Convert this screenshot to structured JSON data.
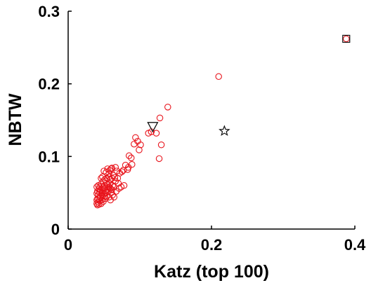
{
  "chart_data": {
    "type": "scatter",
    "title": "",
    "xlabel": "Katz (top 100)",
    "ylabel": "NBTW",
    "xlim": [
      0,
      0.4
    ],
    "ylim": [
      0,
      0.3
    ],
    "xticks": [
      0,
      0.2,
      0.4
    ],
    "xtick_labels": [
      "0",
      "0.2",
      "0.4"
    ],
    "yticks": [
      0,
      0.1,
      0.2,
      0.3
    ],
    "ytick_labels": [
      "0",
      "0.1",
      "0.2",
      "0.3"
    ],
    "grid": false,
    "legend": "none",
    "colors": {
      "circles": "#e8141c",
      "special": "#111111"
    },
    "series": [
      {
        "marker": "circle",
        "color": "#e8141c",
        "points": [
          [
            0.388,
            0.262
          ],
          [
            0.21,
            0.21
          ],
          [
            0.139,
            0.168
          ],
          [
            0.128,
            0.153
          ],
          [
            0.123,
            0.132
          ],
          [
            0.13,
            0.116
          ],
          [
            0.127,
            0.097
          ],
          [
            0.116,
            0.134
          ],
          [
            0.112,
            0.132
          ],
          [
            0.097,
            0.121
          ],
          [
            0.094,
            0.126
          ],
          [
            0.092,
            0.117
          ],
          [
            0.101,
            0.116
          ],
          [
            0.099,
            0.109
          ],
          [
            0.085,
            0.101
          ],
          [
            0.088,
            0.098
          ],
          [
            0.089,
            0.089
          ],
          [
            0.08,
            0.088
          ],
          [
            0.077,
            0.081
          ],
          [
            0.084,
            0.085
          ],
          [
            0.083,
            0.082
          ],
          [
            0.075,
            0.079
          ],
          [
            0.072,
            0.077
          ],
          [
            0.066,
            0.085
          ],
          [
            0.068,
            0.08
          ],
          [
            0.06,
            0.083
          ],
          [
            0.061,
            0.084
          ],
          [
            0.058,
            0.081
          ],
          [
            0.055,
            0.083
          ],
          [
            0.053,
            0.078
          ],
          [
            0.05,
            0.08
          ],
          [
            0.057,
            0.076
          ],
          [
            0.063,
            0.074
          ],
          [
            0.065,
            0.071
          ],
          [
            0.069,
            0.07
          ],
          [
            0.066,
            0.066
          ],
          [
            0.07,
            0.063
          ],
          [
            0.061,
            0.07
          ],
          [
            0.059,
            0.068
          ],
          [
            0.057,
            0.072
          ],
          [
            0.054,
            0.07
          ],
          [
            0.051,
            0.068
          ],
          [
            0.048,
            0.072
          ],
          [
            0.046,
            0.07
          ],
          [
            0.049,
            0.066
          ],
          [
            0.053,
            0.063
          ],
          [
            0.055,
            0.061
          ],
          [
            0.058,
            0.062
          ],
          [
            0.062,
            0.06
          ],
          [
            0.064,
            0.058
          ],
          [
            0.057,
            0.058
          ],
          [
            0.054,
            0.058
          ],
          [
            0.051,
            0.06
          ],
          [
            0.049,
            0.058
          ],
          [
            0.046,
            0.062
          ],
          [
            0.044,
            0.058
          ],
          [
            0.042,
            0.06
          ],
          [
            0.04,
            0.058
          ],
          [
            0.043,
            0.055
          ],
          [
            0.045,
            0.054
          ],
          [
            0.048,
            0.053
          ],
          [
            0.05,
            0.055
          ],
          [
            0.052,
            0.053
          ],
          [
            0.055,
            0.055
          ],
          [
            0.059,
            0.056
          ],
          [
            0.061,
            0.054
          ],
          [
            0.056,
            0.052
          ],
          [
            0.053,
            0.05
          ],
          [
            0.05,
            0.049
          ],
          [
            0.047,
            0.05
          ],
          [
            0.044,
            0.051
          ],
          [
            0.041,
            0.052
          ],
          [
            0.04,
            0.049
          ],
          [
            0.042,
            0.047
          ],
          [
            0.045,
            0.046
          ],
          [
            0.048,
            0.046
          ],
          [
            0.051,
            0.045
          ],
          [
            0.054,
            0.045
          ],
          [
            0.057,
            0.044
          ],
          [
            0.045,
            0.043
          ],
          [
            0.043,
            0.042
          ],
          [
            0.041,
            0.042
          ],
          [
            0.04,
            0.04
          ],
          [
            0.044,
            0.039
          ],
          [
            0.047,
            0.04
          ],
          [
            0.049,
            0.038
          ],
          [
            0.042,
            0.037
          ],
          [
            0.04,
            0.035
          ],
          [
            0.043,
            0.034
          ],
          [
            0.046,
            0.035
          ],
          [
            0.041,
            0.033
          ],
          [
            0.06,
            0.05
          ],
          [
            0.062,
            0.047
          ],
          [
            0.052,
            0.042
          ],
          [
            0.059,
            0.04
          ],
          [
            0.064,
            0.044
          ],
          [
            0.067,
            0.052
          ],
          [
            0.071,
            0.056
          ],
          [
            0.074,
            0.058
          ],
          [
            0.078,
            0.06
          ]
        ]
      },
      {
        "marker": "square",
        "color": "#111111",
        "points": [
          [
            0.388,
            0.262
          ]
        ]
      },
      {
        "marker": "triangle-down",
        "color": "#111111",
        "points": [
          [
            0.118,
            0.141
          ]
        ]
      },
      {
        "marker": "star",
        "color": "#111111",
        "points": [
          [
            0.218,
            0.135
          ]
        ]
      }
    ]
  }
}
